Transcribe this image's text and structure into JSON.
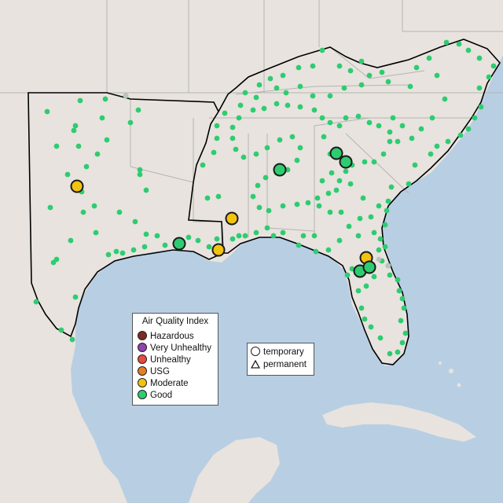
{
  "legend": {
    "title": "Air Quality Index",
    "categories": [
      {
        "label": "Hazardous",
        "color": "#7e2a24"
      },
      {
        "label": "Very Unhealthy",
        "color": "#8e44ad"
      },
      {
        "label": "Unhealthy",
        "color": "#e74c3c"
      },
      {
        "label": "USG",
        "color": "#e67e22"
      },
      {
        "label": "Moderate",
        "color": "#f1c40f"
      },
      {
        "label": "Good",
        "color": "#2ecc71"
      }
    ]
  },
  "monitor_type_legend": {
    "items": [
      {
        "label": "temporary",
        "shape": "circle-outline-icon"
      },
      {
        "label": "permanent",
        "shape": "triangle-outline-icon"
      }
    ]
  },
  "colors": {
    "ocean": "#b8cee3",
    "land": "#e9e4df",
    "region_fill": "#ebe6e3",
    "region_border": "#000000",
    "state_border": "#b4b4b4",
    "good": "#2ecc71",
    "moderate": "#f1c40f",
    "marker_outline": "#1a1a1a"
  },
  "large_monitors": [
    {
      "category": "Moderate",
      "label": "moderate-monitor"
    },
    {
      "category": "Moderate",
      "label": "moderate-monitor"
    },
    {
      "category": "Moderate",
      "label": "moderate-monitor"
    },
    {
      "category": "Moderate",
      "label": "moderate-monitor"
    },
    {
      "category": "Good",
      "label": "good-monitor"
    },
    {
      "category": "Good",
      "label": "good-monitor"
    },
    {
      "category": "Good",
      "label": "good-monitor"
    },
    {
      "category": "Good",
      "label": "good-monitor"
    },
    {
      "category": "Good",
      "label": "good-monitor"
    },
    {
      "category": "Good",
      "label": "good-monitor"
    }
  ]
}
